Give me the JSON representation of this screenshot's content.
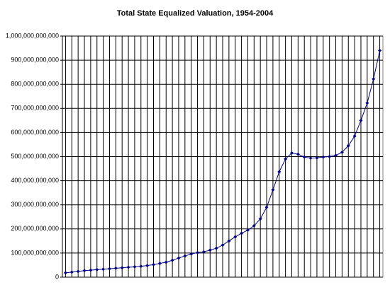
{
  "chart_data": {
    "type": "line",
    "title": "Total State Equalized Valuation, 1954-2004",
    "categories": [
      null,
      null,
      null,
      null,
      null,
      null,
      null,
      null,
      null,
      null,
      null,
      null,
      null,
      null,
      null,
      null,
      null,
      null,
      null,
      null,
      null,
      null,
      null,
      null,
      null,
      null,
      null,
      null,
      null,
      null,
      null,
      null,
      null,
      null,
      null,
      null,
      null,
      null,
      null,
      null,
      null,
      null,
      null,
      null,
      null,
      null,
      null,
      null,
      null,
      null,
      null
    ],
    "series": [
      {
        "color": "#000080",
        "values": [
          18000000000,
          21000000000,
          24000000000,
          27000000000,
          29000000000,
          31000000000,
          33000000000,
          35000000000,
          37000000000,
          39000000000,
          41000000000,
          43000000000,
          45000000000,
          48000000000,
          52000000000,
          57000000000,
          62000000000,
          70000000000,
          79000000000,
          88000000000,
          96000000000,
          102000000000,
          105000000000,
          112000000000,
          120000000000,
          133000000000,
          150000000000,
          167000000000,
          182000000000,
          195000000000,
          213000000000,
          242000000000,
          290000000000,
          362000000000,
          437000000000,
          490000000000,
          515000000000,
          510000000000,
          498000000000,
          494000000000,
          495000000000,
          498000000000,
          500000000000,
          505000000000,
          518000000000,
          545000000000,
          585000000000,
          650000000000,
          722000000000,
          822000000000,
          940000000000
        ]
      }
    ],
    "ylim": [
      0,
      1000000000000
    ],
    "yticks": [
      0,
      {
        "value": 100000000000,
        "label": "100,000,000,000"
      },
      {
        "value": 200000000000,
        "label": "200,000,000,000"
      },
      {
        "value": 300000000000,
        "label": "300,000,000,000"
      },
      {
        "value": 400000000000,
        "label": "400,000,000,000"
      },
      {
        "value": 500000000000,
        "label": "500,000,000,000"
      },
      {
        "value": 600000000000,
        "label": "600,000,000,000"
      },
      {
        "value": 700000000000,
        "label": "700,000,000,000"
      },
      {
        "value": 800000000000,
        "label": "800,000,000,000"
      },
      {
        "value": 900000000000,
        "label": "900,000,000,000"
      },
      {
        "value": 1000000000000,
        "label": "1,000,000,000,000"
      }
    ],
    "grid": true
  }
}
